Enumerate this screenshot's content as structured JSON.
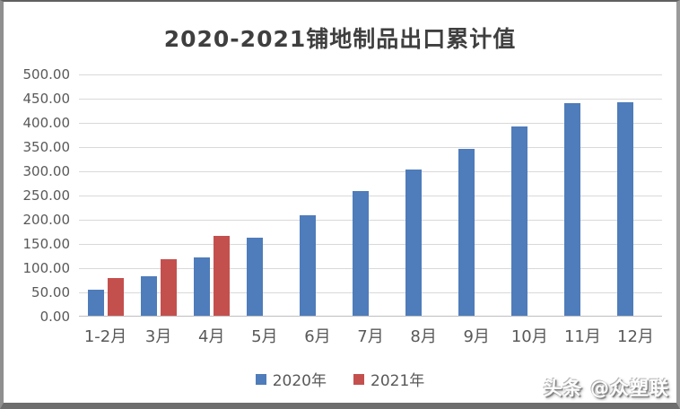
{
  "window": {
    "watermark": "头条 @众塑联"
  },
  "chart_data": {
    "type": "bar",
    "title": "2020-2021铺地制品出口累计值",
    "categories": [
      "1-2月",
      "3月",
      "4月",
      "5月",
      "6月",
      "7月",
      "8月",
      "9月",
      "10月",
      "11月",
      "12月"
    ],
    "series": [
      {
        "name": "2020年",
        "color": "#4f7cba",
        "values": [
          55,
          83,
          122,
          163,
          210,
          260,
          303,
          347,
          393,
          441,
          442
        ]
      },
      {
        "name": "2021年",
        "color": "#c4504e",
        "values": [
          80,
          119,
          167,
          null,
          null,
          null,
          null,
          null,
          null,
          null,
          null
        ]
      }
    ],
    "xlabel": "",
    "ylabel": "",
    "ylim": [
      0,
      500
    ],
    "ytick_step": 50,
    "ytick_decimals": 2,
    "grid": "horizontal",
    "legend_position": "bottom"
  }
}
